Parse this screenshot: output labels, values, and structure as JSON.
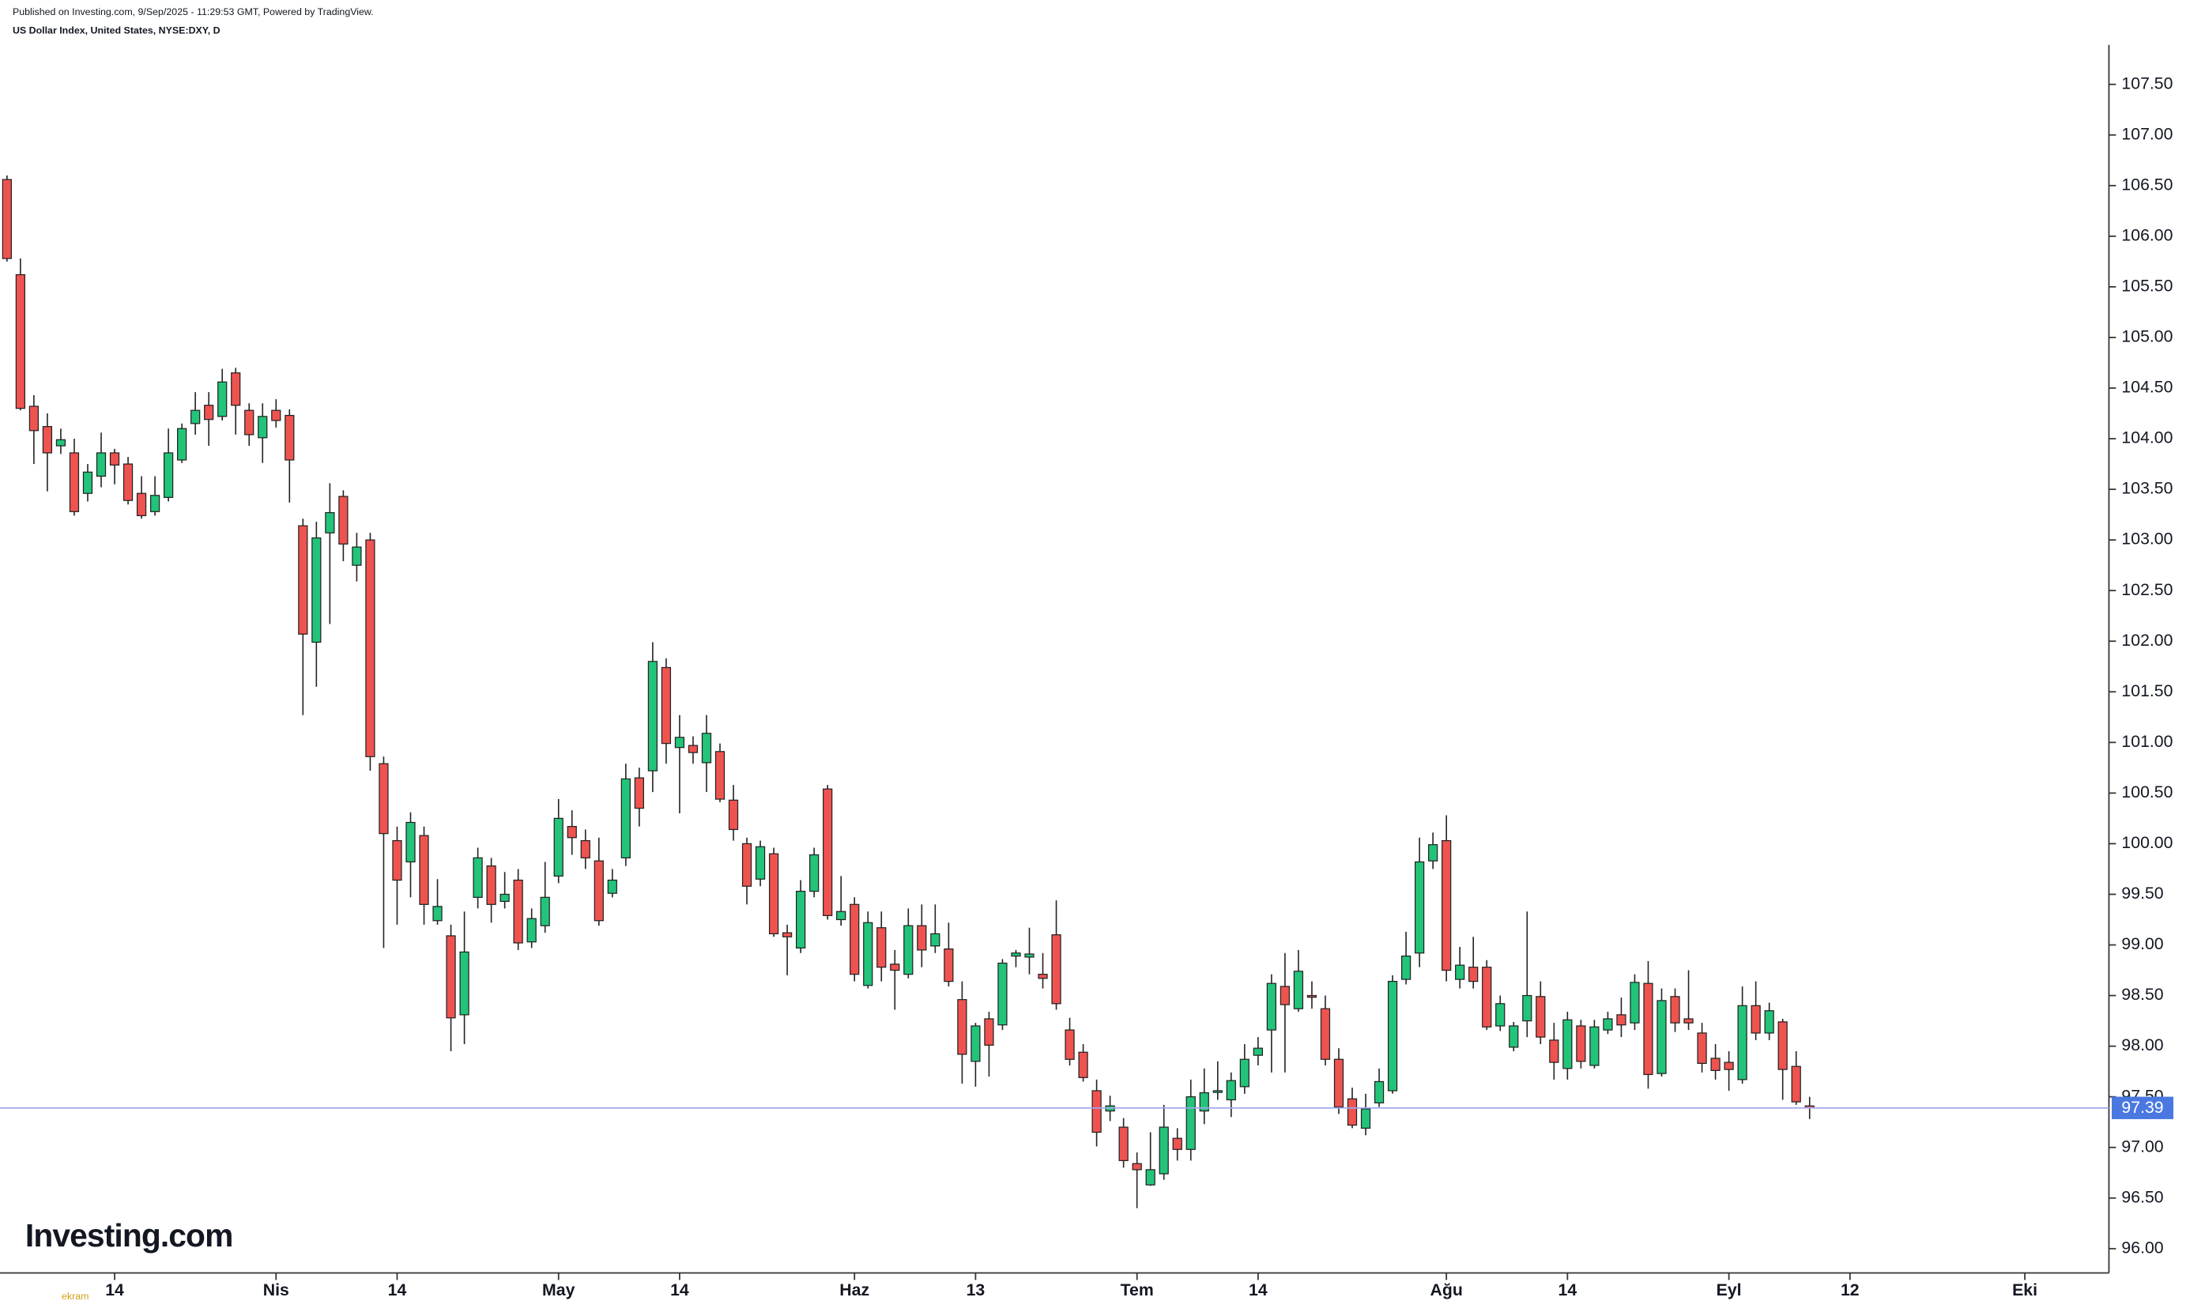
{
  "chart_data": {
    "type": "candlestick",
    "published": "Published on Investing.com, 9/Sep/2025 - 11:29:53 GMT, Powered by TradingView.",
    "title": "US Dollar Index, United States, NYSE:DXY, D",
    "logo": "Investing.com",
    "watermark": "ekram",
    "up_color": "#22c47a",
    "down_color": "#ef5350",
    "open": [
      106.56,
      105.62,
      104.32,
      104.12,
      103.93,
      103.86,
      103.46,
      103.63,
      103.86,
      103.75,
      103.46,
      103.28,
      103.42,
      103.79,
      104.15,
      104.33,
      104.22,
      104.65,
      104.28,
      104.01,
      104.28,
      104.23,
      103.14,
      101.99,
      103.07,
      103.43,
      102.75,
      103.0,
      100.79,
      100.03,
      99.82,
      100.08,
      99.24,
      99.09,
      98.31,
      99.47,
      99.78,
      99.43,
      99.64,
      99.03,
      99.19,
      99.68,
      100.17,
      100.03,
      99.83,
      99.51,
      99.86,
      100.65,
      100.72,
      101.74,
      100.95,
      100.97,
      100.8,
      100.91,
      100.43,
      100.0,
      99.65,
      99.9,
      99.12,
      98.97,
      99.53,
      100.54,
      99.25,
      99.4,
      98.6,
      99.17,
      98.81,
      98.71,
      99.19,
      98.99,
      98.96,
      98.46,
      97.85,
      98.27,
      98.21,
      98.89,
      98.88,
      98.71,
      99.1,
      98.16,
      97.94,
      97.56,
      97.36,
      97.2,
      96.84,
      96.63,
      96.74,
      97.09,
      96.98,
      97.36,
      97.55,
      97.47,
      97.6,
      97.91,
      98.16,
      98.59,
      98.37,
      98.5,
      98.37,
      97.87,
      97.48,
      97.19,
      97.44,
      97.56,
      98.66,
      98.92,
      99.83,
      100.03,
      98.66,
      98.78,
      98.78,
      98.2,
      97.99,
      98.25,
      98.49,
      98.06,
      97.78,
      98.2,
      97.81,
      98.16,
      98.31,
      98.23,
      98.62,
      97.73,
      98.49,
      98.27,
      98.13,
      97.88,
      97.84,
      97.67,
      98.4,
      98.13,
      98.24,
      97.8,
      97.41
    ],
    "high": [
      106.6,
      105.78,
      104.43,
      104.25,
      104.1,
      104.0,
      103.75,
      104.06,
      103.9,
      103.82,
      103.63,
      103.63,
      104.1,
      104.15,
      104.46,
      104.46,
      104.69,
      104.7,
      104.35,
      104.35,
      104.39,
      104.29,
      103.21,
      103.18,
      103.56,
      103.49,
      103.07,
      103.07,
      100.86,
      100.17,
      100.31,
      100.17,
      99.65,
      99.2,
      99.33,
      99.96,
      99.86,
      99.72,
      99.75,
      99.36,
      99.82,
      100.44,
      100.33,
      100.14,
      100.06,
      99.75,
      100.79,
      100.75,
      101.99,
      101.83,
      101.27,
      101.06,
      101.27,
      100.99,
      100.58,
      100.06,
      100.03,
      99.96,
      99.2,
      99.64,
      99.96,
      100.58,
      99.68,
      99.47,
      99.33,
      99.33,
      98.95,
      99.36,
      99.4,
      99.4,
      99.22,
      98.64,
      98.23,
      98.34,
      98.86,
      98.95,
      99.17,
      98.92,
      99.44,
      98.28,
      98.02,
      97.67,
      97.51,
      97.29,
      96.95,
      97.15,
      97.42,
      97.19,
      97.67,
      97.78,
      97.85,
      97.74,
      98.02,
      98.09,
      98.71,
      98.92,
      98.95,
      98.64,
      98.5,
      97.98,
      97.59,
      97.53,
      97.78,
      98.7,
      99.13,
      100.06,
      100.11,
      100.28,
      98.98,
      99.08,
      98.85,
      98.5,
      98.24,
      99.33,
      98.64,
      98.23,
      98.34,
      98.26,
      98.26,
      98.34,
      98.48,
      98.71,
      98.84,
      98.57,
      98.57,
      98.75,
      98.23,
      98.02,
      97.95,
      98.59,
      98.64,
      98.43,
      98.27,
      97.95,
      97.5
    ],
    "low": [
      105.75,
      104.28,
      103.75,
      103.48,
      103.85,
      103.24,
      103.38,
      103.52,
      103.55,
      103.35,
      103.21,
      103.24,
      103.38,
      103.76,
      104.04,
      103.93,
      104.18,
      104.04,
      103.93,
      103.76,
      104.11,
      103.37,
      101.27,
      101.55,
      102.17,
      102.79,
      102.59,
      100.72,
      98.97,
      99.2,
      99.47,
      99.2,
      99.2,
      97.95,
      98.02,
      99.36,
      99.22,
      99.36,
      98.95,
      98.97,
      99.12,
      99.61,
      99.89,
      99.75,
      99.19,
      99.47,
      99.78,
      100.17,
      100.51,
      100.79,
      100.3,
      100.79,
      100.51,
      100.41,
      100.03,
      99.4,
      99.58,
      99.08,
      98.7,
      98.92,
      99.47,
      99.25,
      99.19,
      98.64,
      98.57,
      98.64,
      98.36,
      98.67,
      98.78,
      98.92,
      98.59,
      97.63,
      97.6,
      97.7,
      98.16,
      98.78,
      98.71,
      98.57,
      98.36,
      97.81,
      97.65,
      97.01,
      97.26,
      96.8,
      96.4,
      96.62,
      96.68,
      96.87,
      96.87,
      97.23,
      97.47,
      97.3,
      97.53,
      97.81,
      97.74,
      97.74,
      98.34,
      98.37,
      97.81,
      97.33,
      97.19,
      97.12,
      97.4,
      97.53,
      98.61,
      98.78,
      99.75,
      98.64,
      98.57,
      98.57,
      98.16,
      98.15,
      97.95,
      98.09,
      98.02,
      97.67,
      97.67,
      97.78,
      97.78,
      98.12,
      98.09,
      98.16,
      97.58,
      97.7,
      98.14,
      98.16,
      97.74,
      97.67,
      97.56,
      97.63,
      98.06,
      98.06,
      97.47,
      97.42,
      97.28
    ],
    "close": [
      105.78,
      104.3,
      104.08,
      103.86,
      103.99,
      103.28,
      103.67,
      103.86,
      103.74,
      103.39,
      103.24,
      103.44,
      103.86,
      104.1,
      104.28,
      104.19,
      104.56,
      104.33,
      104.04,
      104.22,
      104.18,
      103.79,
      102.07,
      103.02,
      103.27,
      102.96,
      102.93,
      100.86,
      100.1,
      99.64,
      100.21,
      99.4,
      99.38,
      98.28,
      98.93,
      99.86,
      99.4,
      99.5,
      99.02,
      99.26,
      99.47,
      100.25,
      100.06,
      99.86,
      99.24,
      99.64,
      100.64,
      100.35,
      101.8,
      100.99,
      101.05,
      100.9,
      101.09,
      100.44,
      100.14,
      99.58,
      99.97,
      99.11,
      99.08,
      99.53,
      99.89,
      99.29,
      99.33,
      98.71,
      99.22,
      98.78,
      98.75,
      99.19,
      98.95,
      99.11,
      98.64,
      97.92,
      98.2,
      98.01,
      98.82,
      98.92,
      98.91,
      98.67,
      98.42,
      97.87,
      97.69,
      97.15,
      97.41,
      96.87,
      96.78,
      96.78,
      97.2,
      96.98,
      97.5,
      97.54,
      97.56,
      97.66,
      97.87,
      97.98,
      98.62,
      98.41,
      98.74,
      98.49,
      97.87,
      97.4,
      97.22,
      97.38,
      97.65,
      98.64,
      98.89,
      99.82,
      99.99,
      98.75,
      98.8,
      98.64,
      98.19,
      98.42,
      98.2,
      98.5,
      98.09,
      97.84,
      98.26,
      97.85,
      98.19,
      98.27,
      98.21,
      98.63,
      97.72,
      98.45,
      98.23,
      98.23,
      97.83,
      97.76,
      97.77,
      98.4,
      98.13,
      98.35,
      97.77,
      97.45,
      97.39
    ],
    "last_price": 97.39,
    "last_price_color": "#4a78e0",
    "xlim": [
      -0.52,
      156.25
    ],
    "xticks": [
      {
        "value": 8,
        "label": "14"
      },
      {
        "value": 20,
        "label": "Nis"
      },
      {
        "value": 29,
        "label": "14"
      },
      {
        "value": 41,
        "label": "May"
      },
      {
        "value": 50,
        "label": "14"
      },
      {
        "value": 63,
        "label": "Haz"
      },
      {
        "value": 72,
        "label": "13"
      },
      {
        "value": 84,
        "label": "Tem"
      },
      {
        "value": 93,
        "label": "14"
      },
      {
        "value": 107,
        "label": "Ağu"
      },
      {
        "value": 116,
        "label": "14"
      },
      {
        "value": 128,
        "label": "Eyl"
      },
      {
        "value": 137,
        "label": "12"
      },
      {
        "value": 150,
        "label": "Eki"
      }
    ],
    "ylim": [
      95.76,
      107.89
    ],
    "yticks": [
      {
        "value": 96,
        "label": "96.00"
      },
      {
        "value": 96.5,
        "label": "96.50"
      },
      {
        "value": 97,
        "label": "97.00"
      },
      {
        "value": 97.5,
        "label": "97.50"
      },
      {
        "value": 98,
        "label": "98.00"
      },
      {
        "value": 98.5,
        "label": "98.50"
      },
      {
        "value": 99,
        "label": "99.00"
      },
      {
        "value": 99.5,
        "label": "99.50"
      },
      {
        "value": 100,
        "label": "100.00"
      },
      {
        "value": 100.5,
        "label": "100.50"
      },
      {
        "value": 101,
        "label": "101.00"
      },
      {
        "value": 101.5,
        "label": "101.50"
      },
      {
        "value": 102,
        "label": "102.00"
      },
      {
        "value": 102.5,
        "label": "102.50"
      },
      {
        "value": 103,
        "label": "103.00"
      },
      {
        "value": 103.5,
        "label": "103.50"
      },
      {
        "value": 104,
        "label": "104.00"
      },
      {
        "value": 104.5,
        "label": "104.50"
      },
      {
        "value": 105,
        "label": "105.00"
      },
      {
        "value": 105.5,
        "label": "105.50"
      },
      {
        "value": 106,
        "label": "106.00"
      },
      {
        "value": 106.5,
        "label": "106.50"
      },
      {
        "value": 107,
        "label": "107.00"
      },
      {
        "value": 107.5,
        "label": "107.50"
      }
    ]
  }
}
